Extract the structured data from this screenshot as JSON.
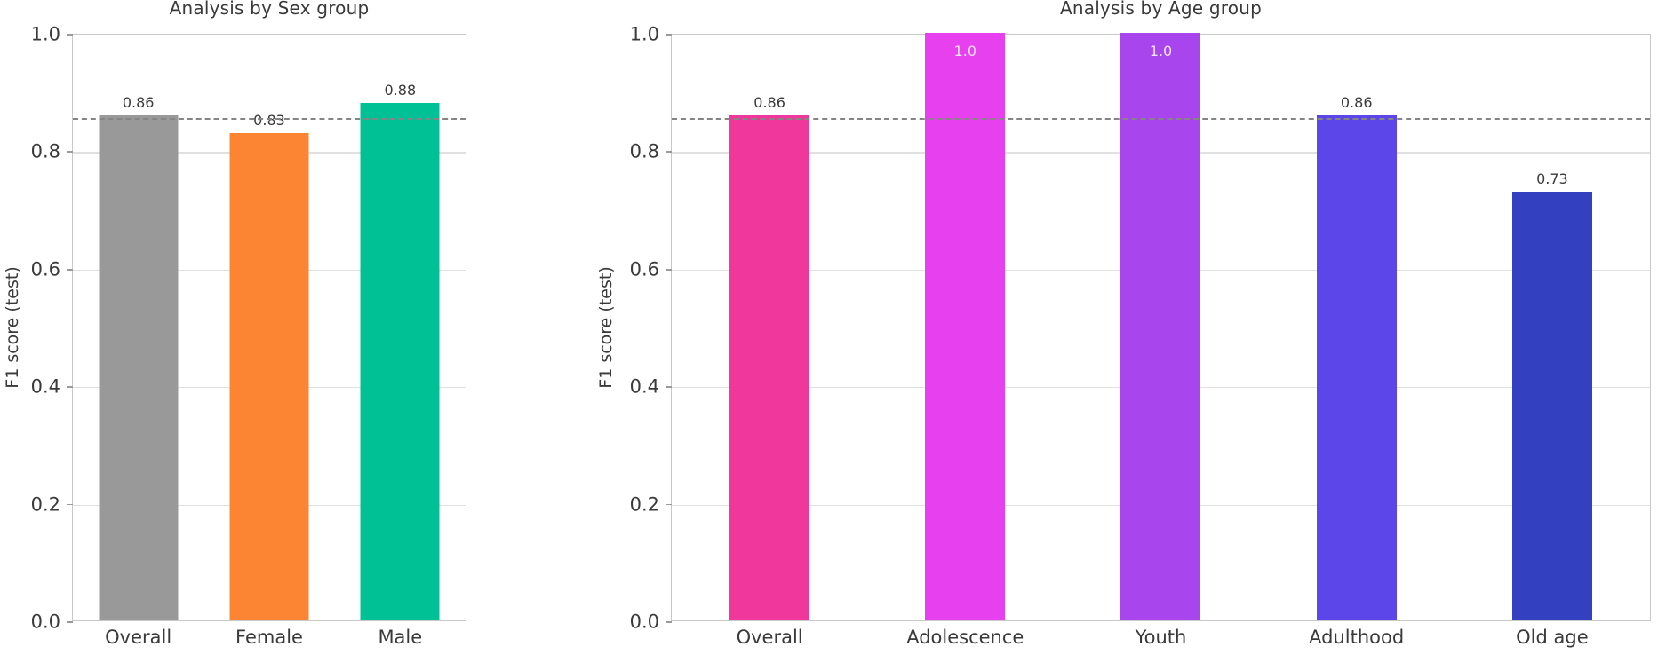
{
  "styles": {
    "text_color": "#3a3a3a",
    "spine_color": "#c9c9c9",
    "grid_color": "#e0e0e0",
    "tick_color": "#9a9a9a",
    "reference_line_color": "#858585",
    "inside_label_color": "#f2e4f5",
    "background": "#ffffff"
  },
  "chart_data": [
    {
      "type": "bar",
      "title": "Analysis by Sex group",
      "xlabel": "",
      "ylabel": "F1 score (test)",
      "categories": [
        "Overall",
        "Female",
        "Male"
      ],
      "values": [
        0.86,
        0.83,
        0.88
      ],
      "value_labels": [
        "0.86",
        "0.83",
        "0.88"
      ],
      "labels_inside": [
        false,
        false,
        false
      ],
      "bar_colors": [
        "#999999",
        "#FB8532",
        "#00C095"
      ],
      "reference_line": 0.856,
      "ylim": [
        0.0,
        1.0
      ],
      "yticks": [
        "0.0",
        "0.2",
        "0.4",
        "0.6",
        "0.8",
        "1.0"
      ],
      "grid": true,
      "legend": false
    },
    {
      "type": "bar",
      "title": "Analysis by Age group",
      "xlabel": "",
      "ylabel": "F1 score (test)",
      "categories": [
        "Overall",
        "Adolescence",
        "Youth",
        "Adulthood",
        "Old age"
      ],
      "values": [
        0.86,
        1.0,
        1.0,
        0.86,
        0.73
      ],
      "value_labels": [
        "0.86",
        "1.0",
        "1.0",
        "0.86",
        "0.73"
      ],
      "labels_inside": [
        false,
        true,
        true,
        false,
        false
      ],
      "bar_colors": [
        "#F0389C",
        "#E741EF",
        "#A845EC",
        "#5C46EA",
        "#3340C0"
      ],
      "reference_line": 0.856,
      "ylim": [
        0.0,
        1.0
      ],
      "yticks": [
        "0.0",
        "0.2",
        "0.4",
        "0.6",
        "0.8",
        "1.0"
      ],
      "grid": true,
      "legend": false
    }
  ]
}
